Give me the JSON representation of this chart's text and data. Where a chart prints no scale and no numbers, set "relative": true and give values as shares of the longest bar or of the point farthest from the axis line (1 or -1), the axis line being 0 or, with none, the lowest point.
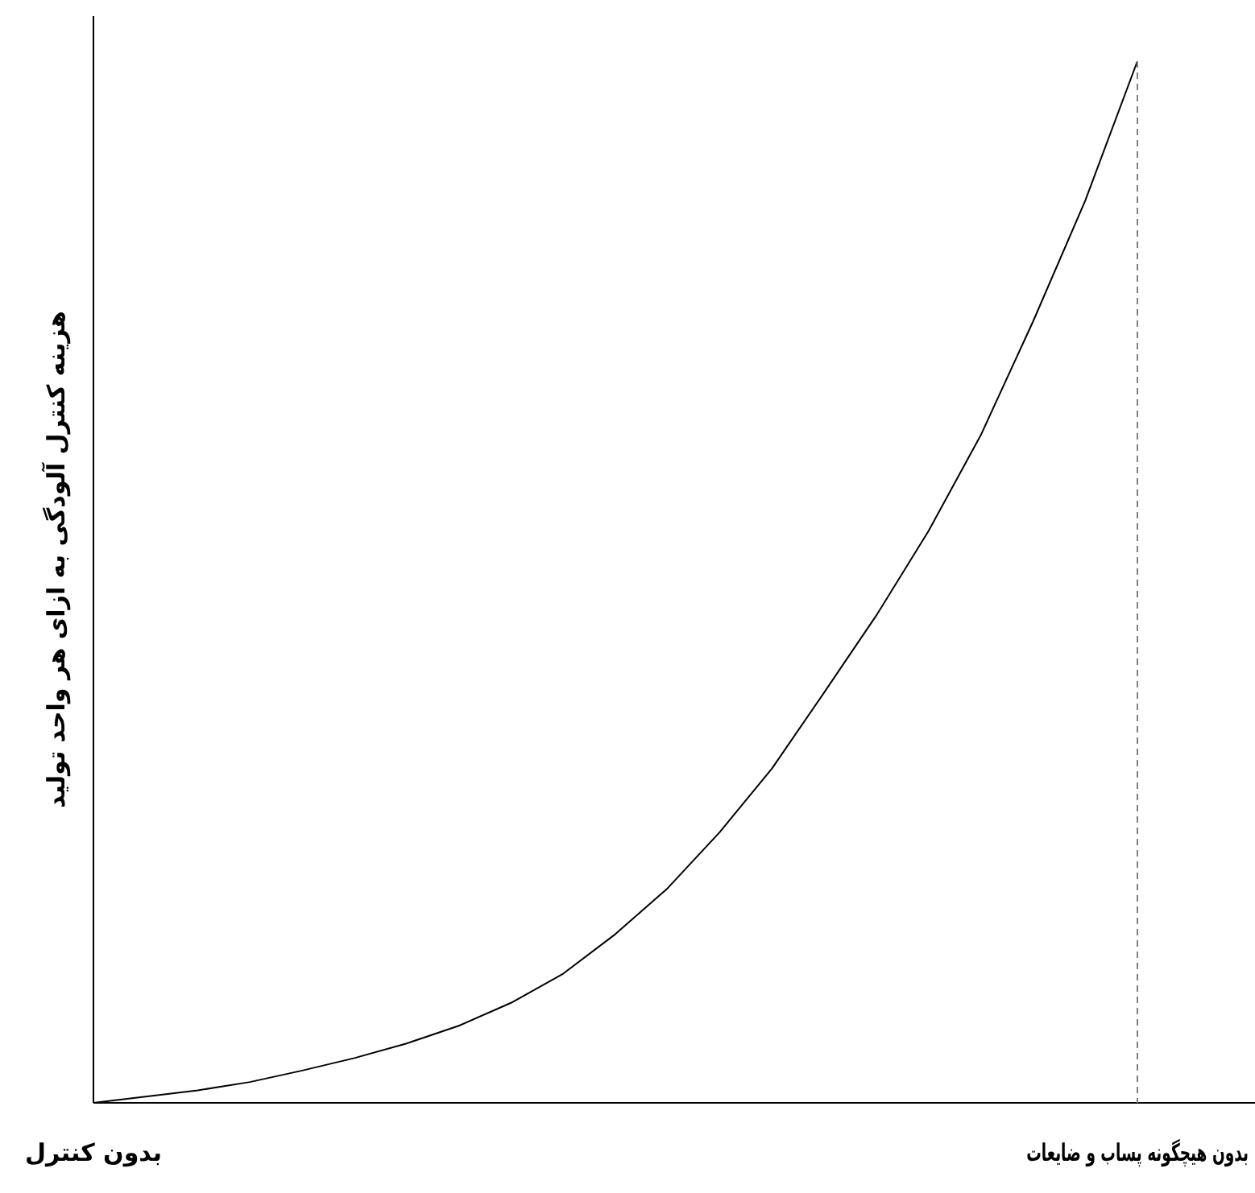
{
  "chart_data": {
    "type": "line",
    "relative": true,
    "ylabel": "هزینه کنترل آلودگی به ازای هر واحد تولید",
    "categories": [
      "بدون کنترل",
      null,
      null,
      null,
      null,
      null,
      null,
      null,
      null,
      null,
      null,
      null,
      null,
      null,
      null,
      null,
      null,
      null,
      null,
      null,
      "بدون هیچگونه پساب و ضایعات"
    ],
    "values": [
      0,
      0.006,
      0.012,
      0.02,
      0.031,
      0.043,
      0.057,
      0.074,
      0.096,
      0.124,
      0.162,
      0.206,
      0.26,
      0.321,
      0.394,
      0.468,
      0.549,
      0.641,
      0.75,
      0.866,
      1
    ],
    "color": "#000000",
    "marker": "none",
    "line_style": "solid"
  }
}
